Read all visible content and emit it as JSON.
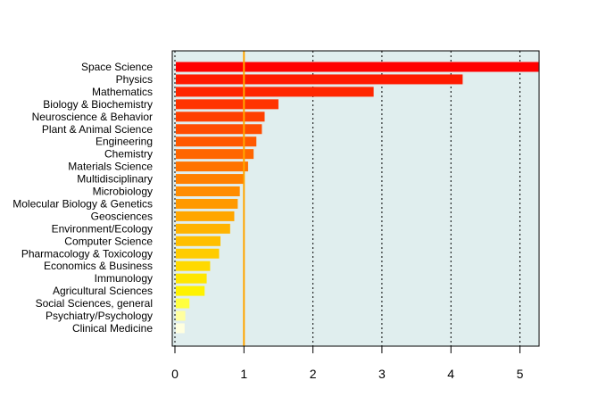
{
  "chart_data": {
    "type": "bar",
    "orientation": "horizontal",
    "title": "",
    "xlabel": "",
    "ylabel": "",
    "categories": [
      "Space Science",
      "Physics",
      "Mathematics",
      "Biology & Biochemistry",
      "Neuroscience & Behavior",
      "Plant & Animal Science",
      "Engineering",
      "Chemistry",
      "Materials Science",
      "Multidisciplinary",
      "Microbiology",
      "Molecular Biology & Genetics",
      "Geosciences",
      "Environment/Ecology",
      "Computer Science",
      "Pharmacology & Toxicology",
      "Economics & Business",
      "Immunology",
      "Agricultural Sciences",
      "Social Sciences, general",
      "Psychiatry/Psychology",
      "Clinical Medicine"
    ],
    "values": [
      5.27,
      4.17,
      2.88,
      1.5,
      1.3,
      1.26,
      1.18,
      1.14,
      1.06,
      0.99,
      0.94,
      0.91,
      0.86,
      0.8,
      0.66,
      0.64,
      0.51,
      0.46,
      0.43,
      0.21,
      0.15,
      0.14
    ],
    "bar_colors": [
      "#FF0000",
      "#FF1A00",
      "#FF2600",
      "#FF3300",
      "#FF4000",
      "#FF4C00",
      "#FF5900",
      "#FF6600",
      "#FF7300",
      "#FF8000",
      "#FF8C00",
      "#FF9900",
      "#FFA600",
      "#FFB300",
      "#FFBF00",
      "#FFCC00",
      "#FFD900",
      "#FFE600",
      "#FFF200",
      "#FFFF40",
      "#FFFF9F",
      "#FFFFDF"
    ],
    "x_ticks": [
      0,
      1,
      2,
      3,
      4,
      5
    ],
    "xlim": [
      0,
      5.27
    ],
    "reference_line": {
      "x": 1,
      "color": "#FFA500"
    },
    "grid": {
      "vertical": true,
      "style": "dotted",
      "color": "#000000"
    },
    "panel_background": "#E0EEEE",
    "legend": "none"
  }
}
